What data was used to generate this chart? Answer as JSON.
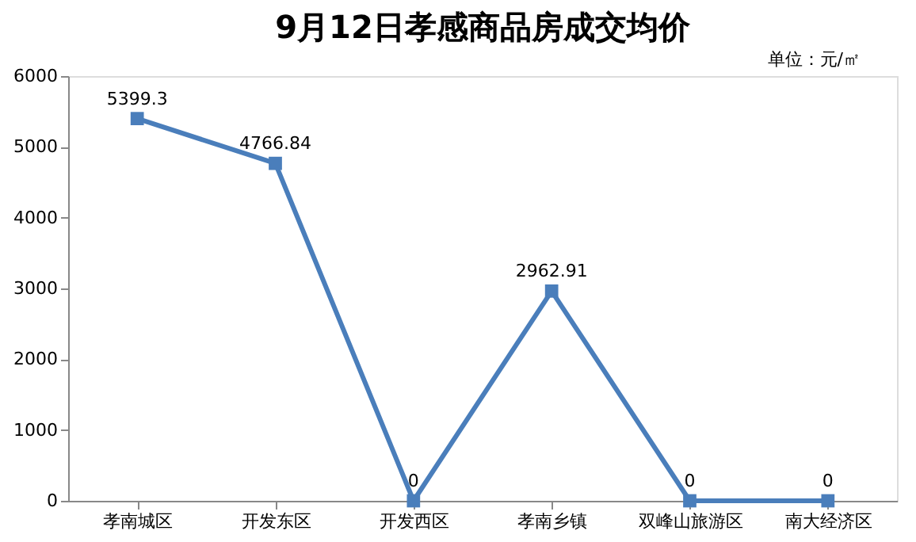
{
  "chart_data": {
    "type": "line",
    "title": "9月12日孝感商品房成交均价",
    "annotations": [
      "单位：元/㎡"
    ],
    "categories": [
      "孝南城区",
      "开发东区",
      "开发西区",
      "孝南乡镇",
      "双峰山旅游区",
      "南大经济区"
    ],
    "series": [
      {
        "color": "#4a7ebb",
        "values": [
          5399.3,
          4766.84,
          0,
          2962.91,
          0,
          0
        ]
      }
    ],
    "ylim": [
      0,
      6000
    ],
    "yticks": [
      0,
      1000,
      2000,
      3000,
      4000,
      5000,
      6000
    ],
    "data_labels": true,
    "marker": "square",
    "line_style": "solid",
    "grid": false
  }
}
